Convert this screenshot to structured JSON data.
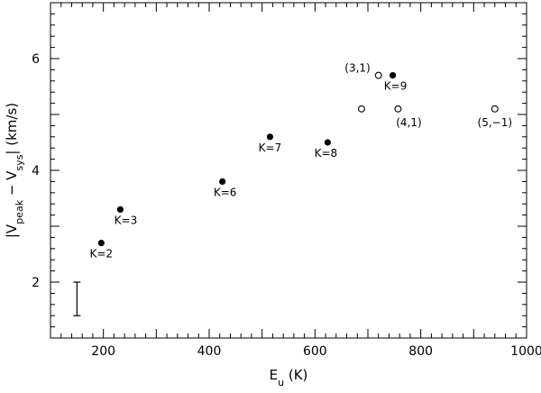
{
  "chart_data": {
    "type": "scatter",
    "xlabel": "E",
    "xlabel_sub": "u",
    "xlabel_unit": " (K)",
    "ylabel_parts": [
      {
        "text": "|V"
      },
      {
        "text": "peak",
        "sub": true
      },
      {
        "text": " − V"
      },
      {
        "text": "sys",
        "sub": true
      },
      {
        "text": "|   (km/s)"
      }
    ],
    "xlim": [
      100,
      1000
    ],
    "ylim": [
      1,
      7
    ],
    "x_ticks": [
      200,
      400,
      600,
      800,
      1000
    ],
    "y_ticks": [
      2,
      4,
      6
    ],
    "grid": false,
    "series": [
      {
        "marker": "filled",
        "points": [
          {
            "x": 196,
            "y": 2.7,
            "label": "K=2"
          },
          {
            "x": 232,
            "y": 3.3,
            "label": "K=3"
          },
          {
            "x": 425,
            "y": 3.8,
            "label": "K=6"
          },
          {
            "x": 515,
            "y": 4.6,
            "label": "K=7"
          },
          {
            "x": 624,
            "y": 4.5,
            "label": "K=8"
          },
          {
            "x": 747,
            "y": 5.7,
            "label": "K=9"
          }
        ]
      },
      {
        "marker": "open",
        "points": [
          {
            "x": 720,
            "y": 5.7,
            "label": "(3,1)"
          },
          {
            "x": 688,
            "y": 5.1,
            "label": ""
          },
          {
            "x": 757,
            "y": 5.1,
            "label": "(4,1)"
          },
          {
            "x": 940,
            "y": 5.1,
            "label": "(5,−1)"
          }
        ]
      }
    ],
    "error_bar": {
      "x": 150,
      "y_low": 1.4,
      "y_high": 2.0
    }
  }
}
